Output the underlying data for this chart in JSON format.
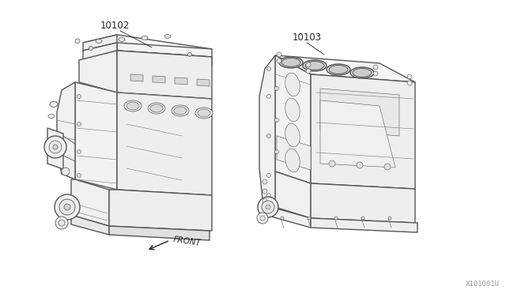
{
  "bg_color": "#ffffff",
  "line_color": "#555555",
  "thin_line_color": "#777777",
  "part1_label": "10102",
  "part2_label": "10103",
  "front_label": "FRONT",
  "watermark": "X101001U",
  "fig_width": 6.4,
  "fig_height": 3.72,
  "dpi": 100,
  "lw_main": 1.0,
  "lw_detail": 0.5
}
